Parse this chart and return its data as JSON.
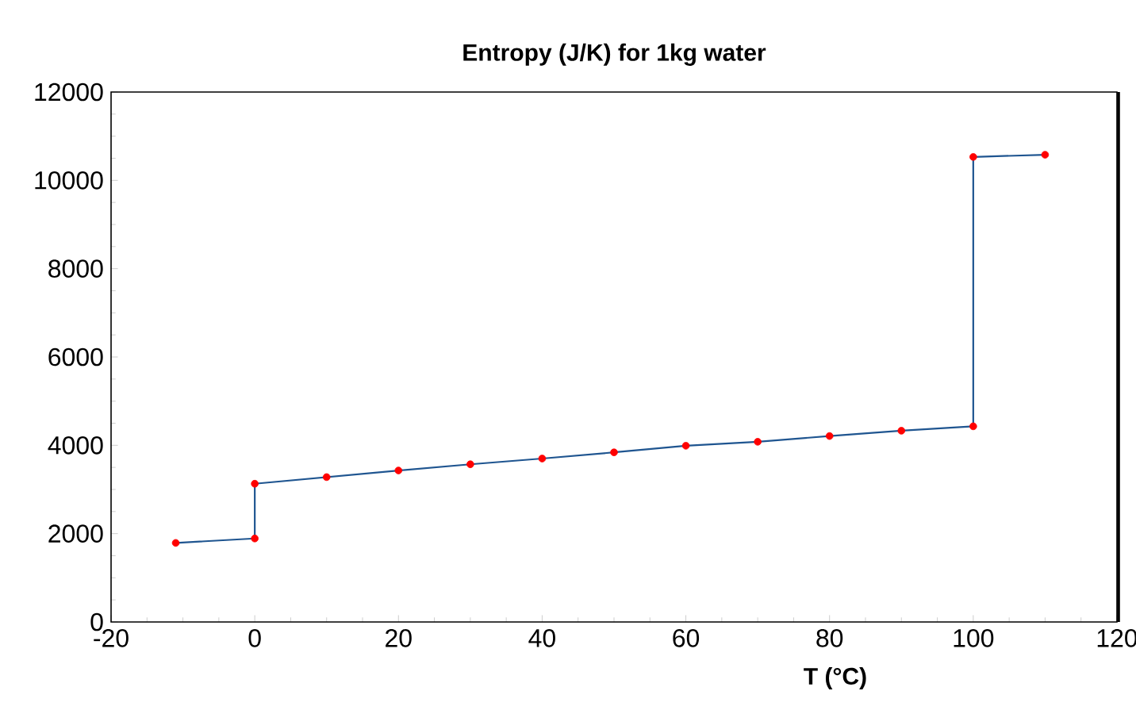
{
  "chart_data": {
    "type": "line",
    "title": "Entropy (J/K) for 1kg water",
    "xlabel": "T (°C)",
    "xlim": [
      -20,
      120
    ],
    "xticks": [
      -20,
      0,
      20,
      40,
      60,
      80,
      100,
      120
    ],
    "ylim": [
      0,
      12000
    ],
    "yticks": [
      0,
      2000,
      4000,
      6000,
      8000,
      10000,
      12000
    ],
    "marker": "circle",
    "line_style": "solid",
    "grid": false,
    "series": [
      {
        "color": "#1f5590",
        "colors": [
          "#ff0000",
          "#ff0000",
          "#ff0000",
          "#ff0000",
          "#ff0000",
          "#ff0000",
          "#ff0000",
          "#ff0000",
          "#ff0000",
          "#ff0000",
          "#ff0000",
          "#ff0000",
          "#ff0000",
          "#ff0000",
          "#ff0000"
        ],
        "x": [
          -11,
          0,
          0,
          10,
          20,
          30,
          40,
          50,
          60,
          70,
          80,
          90,
          100,
          100,
          110
        ],
        "values": [
          1790,
          1890,
          3130,
          3280,
          3430,
          3570,
          3700,
          3840,
          3990,
          4080,
          4210,
          4330,
          4430,
          10530,
          10580
        ]
      }
    ]
  }
}
